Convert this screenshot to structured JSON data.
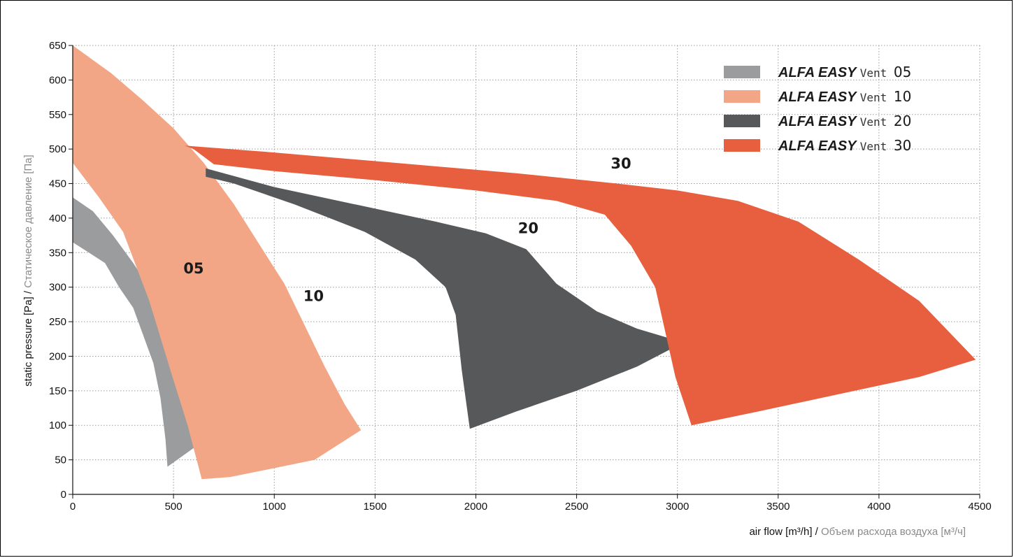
{
  "chart_data": {
    "type": "area",
    "title": "",
    "xlabel": {
      "main": "air flow [m³/h] / ",
      "alt": "Объем расхода воздуха [м³/ч]"
    },
    "ylabel": {
      "main": "static pressure [Pa] / ",
      "alt": "Статическое давление [Па]"
    },
    "xlim": [
      0,
      4500
    ],
    "ylim": [
      0,
      650
    ],
    "xticks": [
      0,
      500,
      1000,
      1500,
      2000,
      2500,
      3000,
      3500,
      4000,
      4500
    ],
    "yticks": [
      0,
      50,
      100,
      150,
      200,
      250,
      300,
      350,
      400,
      450,
      500,
      550,
      600,
      650
    ],
    "grid": true,
    "legend_position": "top-right",
    "series": [
      {
        "name": "ALFA EASY Vent 05",
        "brand": "ALFA EASY",
        "word": "Vent",
        "code": "05",
        "label": "05",
        "label_at": [
          600,
          320
        ],
        "color": "#9b9c9e",
        "polygon": [
          [
            0,
            430
          ],
          [
            100,
            410
          ],
          [
            200,
            375
          ],
          [
            300,
            335
          ],
          [
            400,
            290
          ],
          [
            500,
            225
          ],
          [
            580,
            170
          ],
          [
            660,
            125
          ],
          [
            760,
            100
          ],
          [
            590,
            65
          ],
          [
            470,
            40
          ],
          [
            460,
            80
          ],
          [
            435,
            140
          ],
          [
            400,
            190
          ],
          [
            350,
            230
          ],
          [
            300,
            270
          ],
          [
            230,
            300
          ],
          [
            160,
            335
          ],
          [
            80,
            350
          ],
          [
            0,
            365
          ]
        ]
      },
      {
        "name": "ALFA EASY Vent 10",
        "brand": "ALFA EASY",
        "word": "Vent",
        "code": "10",
        "label": "10",
        "label_at": [
          1195,
          280
        ],
        "color": "#f3a685",
        "polygon": [
          [
            0,
            650
          ],
          [
            190,
            610
          ],
          [
            350,
            570
          ],
          [
            500,
            530
          ],
          [
            650,
            480
          ],
          [
            800,
            420
          ],
          [
            930,
            360
          ],
          [
            1050,
            305
          ],
          [
            1150,
            245
          ],
          [
            1250,
            185
          ],
          [
            1350,
            130
          ],
          [
            1430,
            93
          ],
          [
            1200,
            50
          ],
          [
            950,
            35
          ],
          [
            780,
            25
          ],
          [
            640,
            22
          ],
          [
            570,
            100
          ],
          [
            490,
            175
          ],
          [
            380,
            280
          ],
          [
            250,
            380
          ],
          [
            130,
            430
          ],
          [
            0,
            480
          ]
        ]
      },
      {
        "name": "ALFA EASY Vent 20",
        "brand": "ALFA EASY",
        "word": "Vent",
        "code": "20",
        "label": "20",
        "label_at": [
          2260,
          378
        ],
        "color": "#57585a",
        "polygon": [
          [
            660,
            472
          ],
          [
            1000,
            445
          ],
          [
            1400,
            420
          ],
          [
            1800,
            395
          ],
          [
            2050,
            378
          ],
          [
            2250,
            355
          ],
          [
            2400,
            305
          ],
          [
            2600,
            265
          ],
          [
            2800,
            240
          ],
          [
            3030,
            220
          ],
          [
            2800,
            185
          ],
          [
            2500,
            150
          ],
          [
            2200,
            120
          ],
          [
            1970,
            95
          ],
          [
            1930,
            180
          ],
          [
            1900,
            260
          ],
          [
            1850,
            300
          ],
          [
            1700,
            340
          ],
          [
            1450,
            380
          ],
          [
            1100,
            420
          ],
          [
            800,
            450
          ],
          [
            660,
            460
          ]
        ]
      },
      {
        "name": "ALFA EASY Vent 30",
        "brand": "ALFA EASY",
        "word": "Vent",
        "code": "30",
        "label": "30",
        "label_at": [
          2720,
          472
        ],
        "color": "#e85f3f",
        "polygon": [
          [
            555,
            505
          ],
          [
            1000,
            495
          ],
          [
            1600,
            480
          ],
          [
            2200,
            465
          ],
          [
            2700,
            450
          ],
          [
            3000,
            440
          ],
          [
            3300,
            425
          ],
          [
            3600,
            395
          ],
          [
            3900,
            340
          ],
          [
            4200,
            280
          ],
          [
            4480,
            195
          ],
          [
            4200,
            170
          ],
          [
            3800,
            145
          ],
          [
            3400,
            120
          ],
          [
            3070,
            100
          ],
          [
            2990,
            170
          ],
          [
            2890,
            300
          ],
          [
            2770,
            360
          ],
          [
            2640,
            405
          ],
          [
            2400,
            425
          ],
          [
            2000,
            440
          ],
          [
            1500,
            455
          ],
          [
            1000,
            468
          ],
          [
            700,
            478
          ],
          [
            600,
            500
          ]
        ]
      }
    ]
  }
}
